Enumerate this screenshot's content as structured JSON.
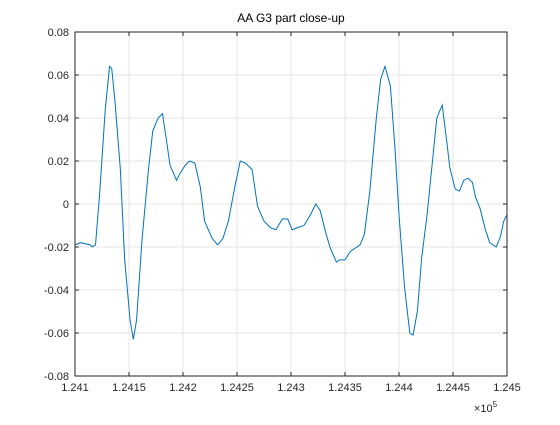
{
  "chart_data": {
    "type": "line",
    "title": "AA G3 part close-up",
    "x": [
      124100,
      124105,
      124114,
      124116,
      124119,
      124123,
      124128,
      124132,
      124134,
      124137,
      124142,
      124146,
      124151,
      124154,
      124157,
      124162,
      124168,
      124172,
      124177,
      124181,
      124184,
      124188,
      124194,
      124197,
      124202,
      124206,
      124211,
      124216,
      124220,
      124227,
      124232,
      124237,
      124242,
      124248,
      124253,
      124258,
      124264,
      124269,
      124275,
      124281,
      124286,
      124292,
      124297,
      124301,
      124306,
      124312,
      124318,
      124323,
      124327,
      124332,
      124336,
      124342,
      124345,
      124350,
      124355,
      124358,
      124364,
      124368,
      124373,
      124379,
      124383,
      124387,
      124392,
      124396,
      124400,
      124405,
      124410,
      124413,
      124417,
      124421,
      124426,
      124431,
      124435,
      124440,
      124444,
      124447,
      124452,
      124456,
      124460,
      124464,
      124468,
      124471,
      124475,
      124480,
      124484,
      124490,
      124494,
      124497,
      124500
    ],
    "series": [
      {
        "color": "#0072bd",
        "values": [
          -0.019,
          -0.018,
          -0.019,
          -0.02,
          -0.019,
          0.006,
          0.044,
          0.064,
          0.063,
          0.048,
          0.016,
          -0.026,
          -0.054,
          -0.063,
          -0.054,
          -0.017,
          0.016,
          0.034,
          0.04,
          0.042,
          0.032,
          0.018,
          0.011,
          0.014,
          0.018,
          0.02,
          0.019,
          0.008,
          -0.008,
          -0.016,
          -0.019,
          -0.016,
          -0.008,
          0.008,
          0.02,
          0.019,
          0.016,
          -0.001,
          -0.008,
          -0.011,
          -0.012,
          -0.007,
          -0.007,
          -0.012,
          -0.011,
          -0.01,
          -0.005,
          0,
          -0.003,
          -0.013,
          -0.02,
          -0.027,
          -0.026,
          -0.026,
          -0.022,
          -0.021,
          -0.019,
          -0.014,
          0.006,
          0.04,
          0.058,
          0.064,
          0.055,
          0.028,
          -0.005,
          -0.038,
          -0.06,
          -0.061,
          -0.05,
          -0.025,
          -0.005,
          0.02,
          0.04,
          0.046,
          0.03,
          0.017,
          0.007,
          0.006,
          0.011,
          0.012,
          0.01,
          0.003,
          -0.002,
          -0.012,
          -0.018,
          -0.02,
          -0.015,
          -0.008,
          -0.005
        ]
      }
    ],
    "xlim": [
      124100,
      124500
    ],
    "xticks": [
      {
        "value": 124100,
        "label": "1.241"
      },
      {
        "value": 124150,
        "label": "1.2415"
      },
      {
        "value": 124200,
        "label": "1.242"
      },
      {
        "value": 124250,
        "label": "1.2425"
      },
      {
        "value": 124300,
        "label": "1.243"
      },
      {
        "value": 124350,
        "label": "1.2435"
      },
      {
        "value": 124400,
        "label": "1.244"
      },
      {
        "value": 124450,
        "label": "1.2445"
      },
      {
        "value": 124500,
        "label": "1.245"
      }
    ],
    "x_exponent": {
      "base": "×10",
      "power": "5"
    },
    "ylim": [
      -0.08,
      0.08
    ],
    "yticks": [
      -0.08,
      -0.06,
      -0.04,
      -0.02,
      0,
      0.02,
      0.04,
      0.06,
      0.08
    ],
    "grid": true
  }
}
